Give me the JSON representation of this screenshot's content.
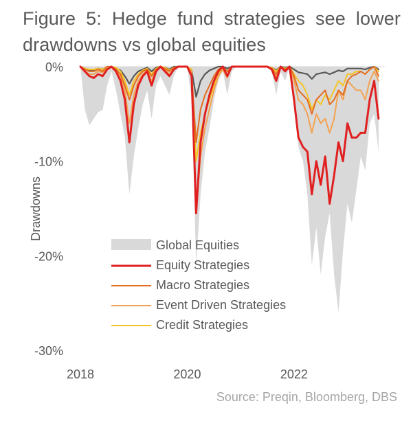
{
  "title": {
    "words": [
      "Figure",
      "5:",
      "Hedge",
      "fund",
      "strategies",
      "see",
      "lower"
    ],
    "line2": "drawdowns vs global equities"
  },
  "source": "Source: Preqin, Bloomberg, DBS",
  "colors": {
    "global_equities": "#d9d9d9",
    "equity": "#e02020",
    "macro": "#e36c1f",
    "event": "#f4a251",
    "credit": "#f6c425",
    "hf_index": "#595959"
  },
  "chart_data": {
    "type": "area",
    "title": "Figure 5: Hedge fund strategies see lower drawdowns vs global equities",
    "xlabel": "",
    "ylabel": "Drawdowns",
    "x_range": [
      2018,
      2023.7
    ],
    "ylim": [
      -30,
      0
    ],
    "y_ticks": [
      0,
      -10,
      -20,
      -30
    ],
    "y_tick_labels": [
      "0%",
      "-10%",
      "-20%",
      "-30%"
    ],
    "x_ticks": [
      2018,
      2020,
      2022
    ],
    "x_tick_labels": [
      "2018",
      "2020",
      "2022"
    ],
    "legend_position": "center-left",
    "x": [
      2018.0,
      2018.083,
      2018.167,
      2018.25,
      2018.333,
      2018.417,
      2018.5,
      2018.583,
      2018.667,
      2018.75,
      2018.833,
      2018.917,
      2019.0,
      2019.083,
      2019.167,
      2019.25,
      2019.333,
      2019.417,
      2019.5,
      2019.583,
      2019.667,
      2019.75,
      2019.833,
      2019.917,
      2020.0,
      2020.083,
      2020.167,
      2020.25,
      2020.333,
      2020.417,
      2020.5,
      2020.583,
      2020.667,
      2020.75,
      2020.833,
      2020.917,
      2021.0,
      2021.083,
      2021.167,
      2021.25,
      2021.333,
      2021.417,
      2021.5,
      2021.583,
      2021.667,
      2021.75,
      2021.833,
      2021.917,
      2022.0,
      2022.083,
      2022.167,
      2022.25,
      2022.333,
      2022.417,
      2022.5,
      2022.583,
      2022.667,
      2022.75,
      2022.833,
      2022.917,
      2023.0,
      2023.083,
      2023.167,
      2023.25,
      2023.333,
      2023.417,
      2023.5,
      2023.583
    ],
    "series": [
      {
        "name": "Global Equities",
        "kind": "area",
        "color_key": "global_equities",
        "values": [
          0,
          -4.5,
          -6.2,
          -5.5,
          -4.8,
          -4.6,
          -2.0,
          -0.5,
          -2.5,
          -5.0,
          -7.5,
          -13.5,
          -9.5,
          -6.5,
          -4.0,
          -2.5,
          -5.5,
          -2.0,
          -1.0,
          -2.0,
          -3.0,
          -1.0,
          0,
          0,
          0,
          -3.5,
          -21.0,
          -13.5,
          -9.0,
          -6.5,
          -3.5,
          -1.5,
          -0.5,
          -3.0,
          -0.5,
          0,
          0,
          0,
          0,
          0,
          0,
          0,
          0,
          -0.5,
          -3.0,
          -0.5,
          -1.5,
          0,
          -4.5,
          -8.5,
          -10.0,
          -13.5,
          -21.0,
          -17.0,
          -22.0,
          -18.0,
          -15.5,
          -22.0,
          -26.0,
          -19.5,
          -14.5,
          -16.5,
          -13.0,
          -9.5,
          -11.0,
          -6.0,
          -5.0,
          -9.0
        ]
      },
      {
        "name": "Equity Strategies",
        "kind": "line",
        "color_key": "equity",
        "width": 3,
        "values": [
          0,
          -0.5,
          -1.0,
          -1.2,
          -0.8,
          -1.0,
          -0.3,
          0,
          -0.5,
          -1.5,
          -3.5,
          -8.0,
          -4.0,
          -2.0,
          -1.0,
          -0.5,
          -2.0,
          -0.5,
          0,
          -0.5,
          -1.0,
          -0.3,
          0,
          0,
          0,
          -1.0,
          -15.5,
          -8.0,
          -5.0,
          -3.0,
          -1.5,
          -0.5,
          0,
          -1.0,
          0,
          0,
          0,
          0,
          0,
          0,
          0,
          0,
          0,
          -0.3,
          -1.5,
          0,
          -0.5,
          0,
          -3.5,
          -7.5,
          -8.5,
          -9.0,
          -13.5,
          -10.0,
          -12.5,
          -9.5,
          -14.5,
          -11.5,
          -8.0,
          -10.0,
          -6.0,
          -7.5,
          -7.5,
          -7.0,
          -7.0,
          -3.5,
          -1.5,
          -5.5
        ]
      },
      {
        "name": "Macro Strategies",
        "kind": "line",
        "color_key": "macro",
        "width": 2,
        "values": [
          0,
          -0.3,
          -0.5,
          -0.5,
          -0.3,
          -0.5,
          0,
          0,
          -0.3,
          -0.8,
          -2.0,
          -3.5,
          -2.0,
          -1.0,
          -0.5,
          -0.3,
          -1.0,
          -0.3,
          0,
          -0.2,
          -0.5,
          -0.1,
          0,
          0,
          0,
          -0.8,
          -8.0,
          -4.5,
          -3.0,
          -2.0,
          -1.0,
          -0.3,
          0,
          -0.5,
          0,
          0,
          0,
          0,
          0,
          0,
          0,
          0,
          0,
          -0.2,
          -0.8,
          0,
          -0.3,
          0,
          -1.0,
          -2.5,
          -3.0,
          -3.5,
          -5.0,
          -3.5,
          -3.0,
          -2.5,
          -4.0,
          -3.5,
          -2.5,
          -3.0,
          -1.5,
          -1.0,
          -0.8,
          -0.5,
          -0.8,
          -0.3,
          0,
          -1.0
        ]
      },
      {
        "name": "Event Driven Strategies",
        "kind": "line",
        "color_key": "event",
        "width": 2,
        "values": [
          0,
          -0.5,
          -0.8,
          -0.8,
          -0.5,
          -0.6,
          -0.2,
          0,
          -0.3,
          -1.0,
          -2.5,
          -6.0,
          -3.0,
          -1.5,
          -0.8,
          -0.4,
          -1.5,
          -0.4,
          0,
          -0.3,
          -0.8,
          -0.2,
          0,
          0,
          0,
          -0.5,
          -15.0,
          -9.5,
          -6.5,
          -4.5,
          -2.5,
          -1.0,
          -0.3,
          -1.2,
          0,
          0,
          0,
          0,
          0,
          0,
          0,
          0,
          0,
          -0.2,
          -1.0,
          0,
          -0.3,
          0,
          -1.5,
          -3.5,
          -4.0,
          -5.0,
          -7.0,
          -5.0,
          -6.0,
          -5.5,
          -7.0,
          -5.5,
          -2.5,
          -3.5,
          -1.5,
          -2.0,
          -2.5,
          -2.5,
          -3.5,
          -1.5,
          -0.5,
          -1.5
        ]
      },
      {
        "name": "Credit Strategies",
        "kind": "line",
        "color_key": "credit",
        "width": 2,
        "values": [
          0,
          -0.2,
          -0.3,
          -0.3,
          -0.2,
          -0.3,
          0,
          0,
          -0.1,
          -0.5,
          -1.5,
          -3.0,
          -1.5,
          -0.8,
          -0.4,
          -0.2,
          -0.8,
          -0.2,
          0,
          -0.1,
          -0.4,
          -0.1,
          0,
          0,
          0,
          -0.3,
          -10.0,
          -7.0,
          -5.0,
          -3.5,
          -2.0,
          -0.8,
          -0.2,
          -0.5,
          0,
          0,
          0,
          0,
          0,
          0,
          0,
          0,
          0,
          -0.1,
          -0.5,
          0,
          -0.2,
          0,
          -0.8,
          -1.5,
          -2.0,
          -3.0,
          -4.5,
          -3.5,
          -4.0,
          -3.0,
          -3.5,
          -2.5,
          -1.5,
          -2.0,
          -0.8,
          -0.8,
          -0.5,
          -0.5,
          -0.8,
          -0.3,
          0,
          -0.5
        ]
      },
      {
        "name": "Hedge Fund Index",
        "kind": "line",
        "color_key": "hf_index",
        "width": 2.2,
        "in_legend": false,
        "values": [
          0,
          -0.2,
          -0.4,
          -0.4,
          -0.2,
          -0.3,
          0,
          0,
          -0.2,
          -0.4,
          -1.0,
          -1.8,
          -1.0,
          -0.5,
          -0.3,
          -0.1,
          -0.5,
          -0.1,
          0,
          -0.1,
          -0.3,
          0,
          0,
          0,
          0,
          -0.4,
          -3.2,
          -1.5,
          -0.8,
          -0.4,
          -0.2,
          0,
          0,
          -0.2,
          0,
          0,
          0,
          0,
          0,
          0,
          0,
          0,
          0,
          -0.1,
          -0.4,
          0,
          -0.1,
          0,
          -0.3,
          -0.6,
          -0.7,
          -0.8,
          -1.3,
          -0.8,
          -0.7,
          -0.6,
          -0.8,
          -0.6,
          -0.4,
          -0.5,
          -0.2,
          -0.2,
          -0.2,
          -0.2,
          -0.3,
          -0.1,
          0,
          -0.3
        ]
      }
    ]
  }
}
